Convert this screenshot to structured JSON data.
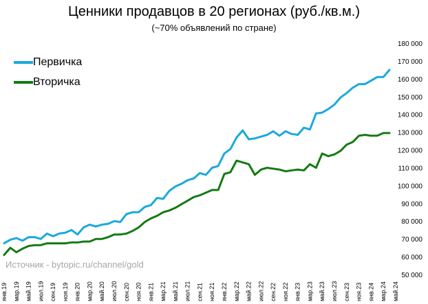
{
  "header": {
    "title": "Ценники продавцов в 20 регионах (руб./кв.м.)",
    "subtitle": "(~70% объявлений по стране)"
  },
  "source_note": "Источник - bytopic.ru/channel/gold",
  "colors": {
    "primary": "#1aa9dc",
    "secondary": "#137a13"
  },
  "chart_data": {
    "type": "line",
    "title": "Ценники продавцов в 20 регионах (руб./кв.м.)",
    "subtitle": "(~70% объявлений по стране)",
    "ylim": [
      50000,
      180000
    ],
    "y_ticks": [
      "50 000",
      "60 000",
      "70 000",
      "80 000",
      "90 000",
      "100 000",
      "110 000",
      "120 000",
      "130 000",
      "140 000",
      "150 000",
      "160 000",
      "170 000",
      "180 000"
    ],
    "x_ticks": [
      {
        "i": 0,
        "label": "янв.19"
      },
      {
        "i": 2,
        "label": "мар.19"
      },
      {
        "i": 4,
        "label": "май.19"
      },
      {
        "i": 6,
        "label": "июл.19"
      },
      {
        "i": 8,
        "label": "сен.19"
      },
      {
        "i": 10,
        "label": "ноя.19"
      },
      {
        "i": 12,
        "label": "янв.20"
      },
      {
        "i": 14,
        "label": "мар.20"
      },
      {
        "i": 16,
        "label": "май.20"
      },
      {
        "i": 18,
        "label": "июл.20"
      },
      {
        "i": 20,
        "label": "сен.20"
      },
      {
        "i": 22,
        "label": "ноя.20"
      },
      {
        "i": 24,
        "label": "янв.21"
      },
      {
        "i": 26,
        "label": "мар.21"
      },
      {
        "i": 28,
        "label": "май.21"
      },
      {
        "i": 30,
        "label": "июл.21"
      },
      {
        "i": 32,
        "label": "сен.21"
      },
      {
        "i": 34,
        "label": "ноя.21"
      },
      {
        "i": 36,
        "label": "янв.22"
      },
      {
        "i": 38,
        "label": "мар.22"
      },
      {
        "i": 40,
        "label": "май.22"
      },
      {
        "i": 42,
        "label": "июл.22"
      },
      {
        "i": 44,
        "label": "сен.22"
      },
      {
        "i": 46,
        "label": "ноя.22"
      },
      {
        "i": 48,
        "label": "янв.23"
      },
      {
        "i": 50,
        "label": "мар.23"
      },
      {
        "i": 52,
        "label": "май.23"
      },
      {
        "i": 54,
        "label": "июл.23"
      },
      {
        "i": 56,
        "label": "сен.23"
      },
      {
        "i": 58,
        "label": "ноя.23"
      },
      {
        "i": 60,
        "label": "янв.24"
      },
      {
        "i": 62,
        "label": "мар.24"
      },
      {
        "i": 64,
        "label": "май.24"
      }
    ],
    "legend_position": "top-left",
    "grid": false,
    "series": [
      {
        "name": "Первичка",
        "color": "#1aa9dc",
        "values": [
          67500,
          69500,
          70500,
          69000,
          71000,
          71000,
          70000,
          73000,
          71500,
          73000,
          73500,
          75000,
          72500,
          76500,
          78000,
          77000,
          78000,
          78500,
          80000,
          79500,
          84000,
          85000,
          85000,
          88000,
          89000,
          93000,
          92500,
          97000,
          99500,
          101000,
          103000,
          104000,
          107000,
          106000,
          110000,
          111000,
          118000,
          120500,
          127000,
          131000,
          126000,
          126500,
          127500,
          128500,
          130500,
          128000,
          130500,
          129000,
          128500,
          132500,
          131500,
          140500,
          141000,
          143000,
          145500,
          149500,
          152000,
          155000,
          157000,
          157000,
          159000,
          161000,
          161000,
          165000
        ]
      },
      {
        "name": "Вторичка",
        "color": "#137a13",
        "values": [
          61000,
          65000,
          62500,
          64500,
          66000,
          66500,
          66500,
          67500,
          67500,
          67500,
          67500,
          68000,
          68000,
          68500,
          68500,
          70000,
          70000,
          71000,
          72500,
          72500,
          73000,
          74500,
          76500,
          79500,
          81500,
          83000,
          85000,
          86000,
          87500,
          89500,
          91500,
          93500,
          94500,
          96000,
          97500,
          97500,
          106500,
          107500,
          114000,
          113000,
          112000,
          106000,
          109000,
          110000,
          109500,
          109000,
          108000,
          108500,
          109000,
          108500,
          112000,
          110000,
          118000,
          116500,
          117500,
          119500,
          123000,
          124500,
          128000,
          128500,
          128000,
          128000,
          129500,
          129500
        ]
      }
    ]
  }
}
